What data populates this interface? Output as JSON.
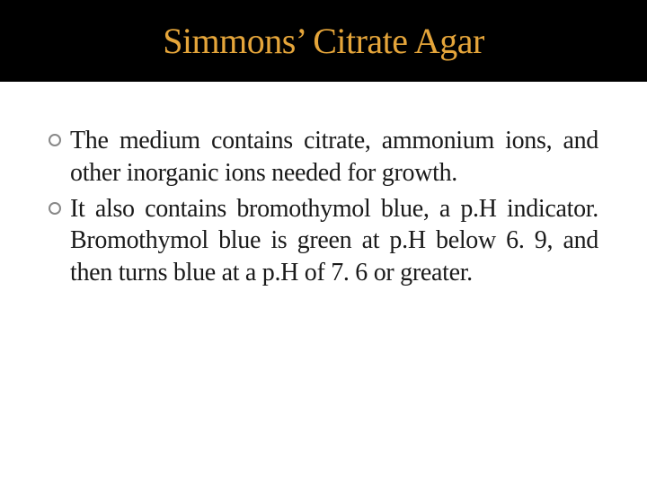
{
  "slide": {
    "title": "Simmons’ Citrate Agar",
    "title_color": "#e5a53a",
    "title_bg": "#000000",
    "title_fontsize": 40,
    "body_fontsize": 28,
    "body_color": "#1a1a1a",
    "bullet_border_color": "#888888",
    "bullets": [
      "The medium contains citrate, ammonium ions, and other inorganic ions needed for growth.",
      "It also contains bromothymol blue, a p.H indicator. Bromothymol blue is green at p.H below 6. 9, and then turns blue at a p.H of 7. 6 or greater."
    ]
  }
}
